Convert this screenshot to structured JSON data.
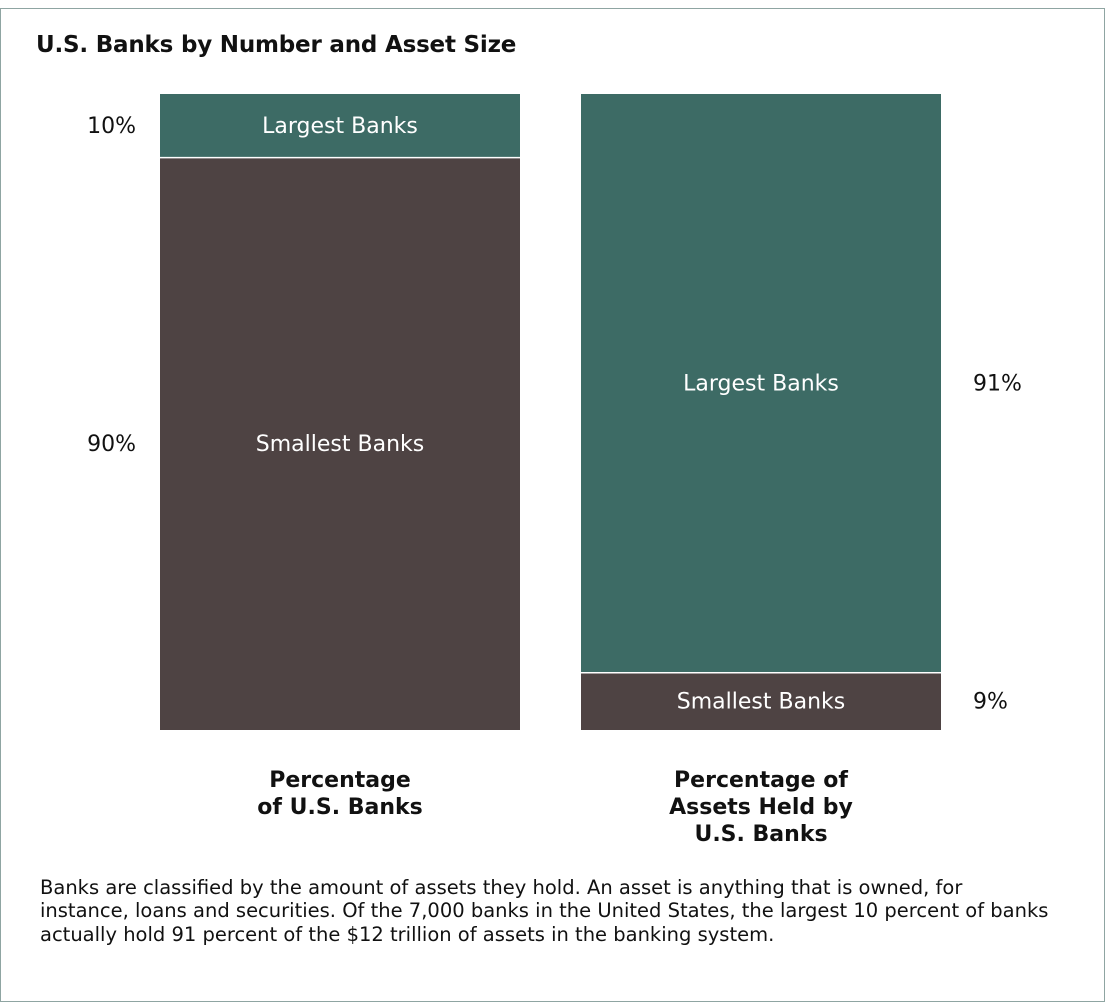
{
  "chart_data": {
    "type": "bar",
    "stacked": true,
    "normalized": true,
    "title": "U.S. Banks by Number and Asset Size",
    "categories": [
      "Percentage of U.S. Banks",
      "Percentage of Assets Held by U.S. Banks"
    ],
    "category_label_lines": [
      [
        "Percentage",
        "of U.S. Banks"
      ],
      [
        "Percentage of",
        "Assets Held by",
        "U.S. Banks"
      ]
    ],
    "series": [
      {
        "name": "Smallest Banks",
        "values": [
          90,
          9
        ],
        "value_labels": [
          "90%",
          "9%"
        ],
        "color": "#4e4343"
      },
      {
        "name": "Largest Banks",
        "values": [
          10,
          91
        ],
        "value_labels": [
          "10%",
          "91%"
        ],
        "color": "#3d6b65"
      }
    ],
    "value_label_sides": [
      "left",
      "right"
    ],
    "ylim": [
      0,
      100
    ],
    "grid": false,
    "legend": "none"
  },
  "caption": "Banks are classified by the amount of assets they hold. An asset is anything that is owned, for instance, loans and securities. Of the 7,000 banks in the United States, the largest 10 percent of banks actually hold 91 percent of the $12 trillion of assets in the banking system."
}
